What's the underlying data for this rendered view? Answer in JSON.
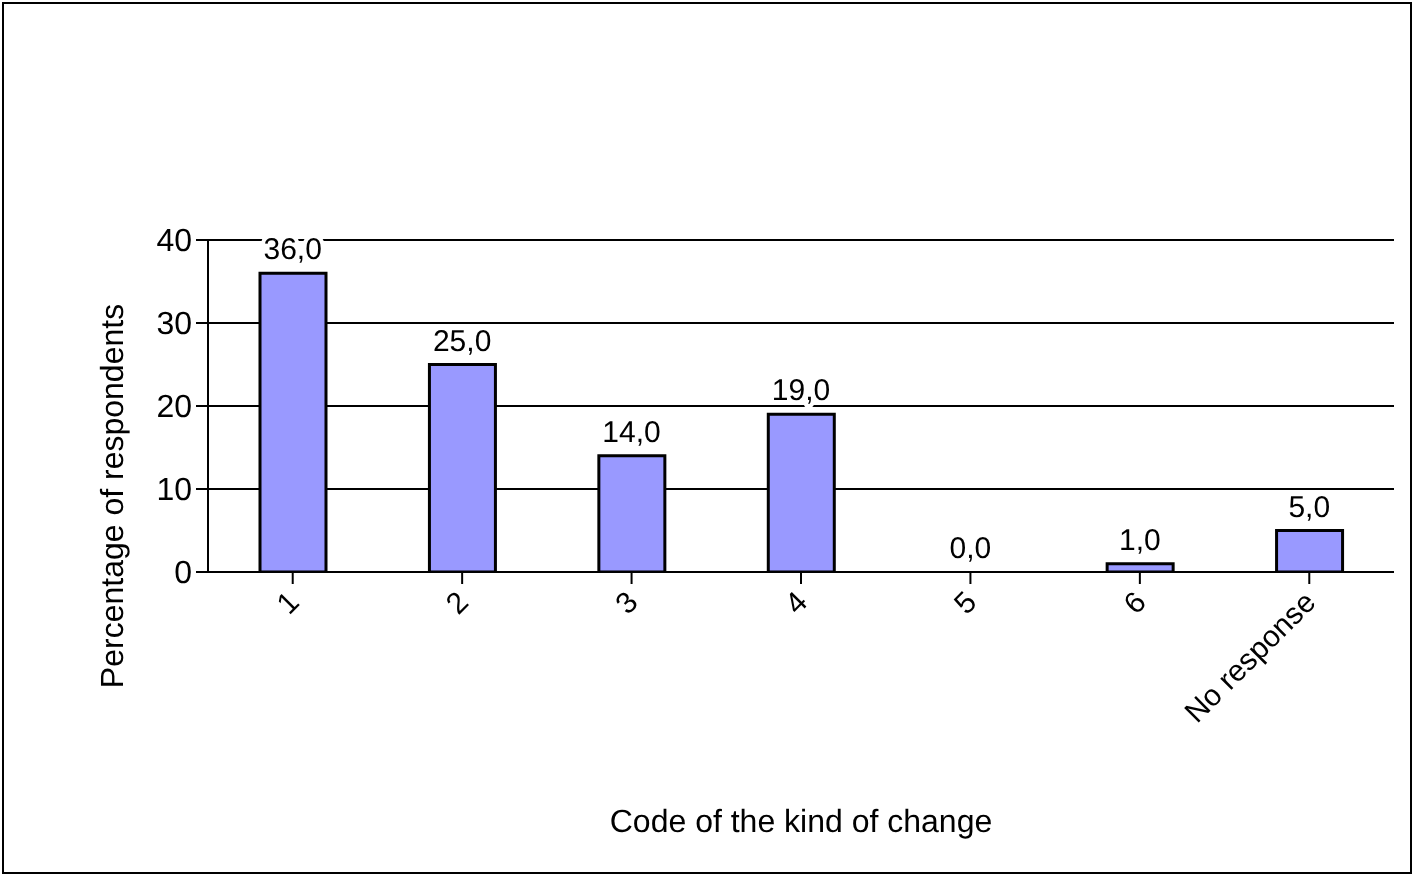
{
  "chart_data": {
    "type": "bar",
    "xlabel": "Code of the kind of change",
    "ylabel": "Percentage of respondents",
    "categories": [
      "1",
      "2",
      "3",
      "4",
      "5",
      "6",
      "No response"
    ],
    "values": [
      36,
      25,
      14,
      19,
      0,
      1,
      5
    ],
    "value_labels": [
      "36,0",
      "25,0",
      "14,0",
      "19,0",
      "0,0",
      "1,0",
      "5,0"
    ],
    "color": "#9999ff",
    "ylim": [
      0,
      40
    ],
    "yticks": [
      0,
      10,
      20,
      30,
      40
    ],
    "grid": "y"
  }
}
